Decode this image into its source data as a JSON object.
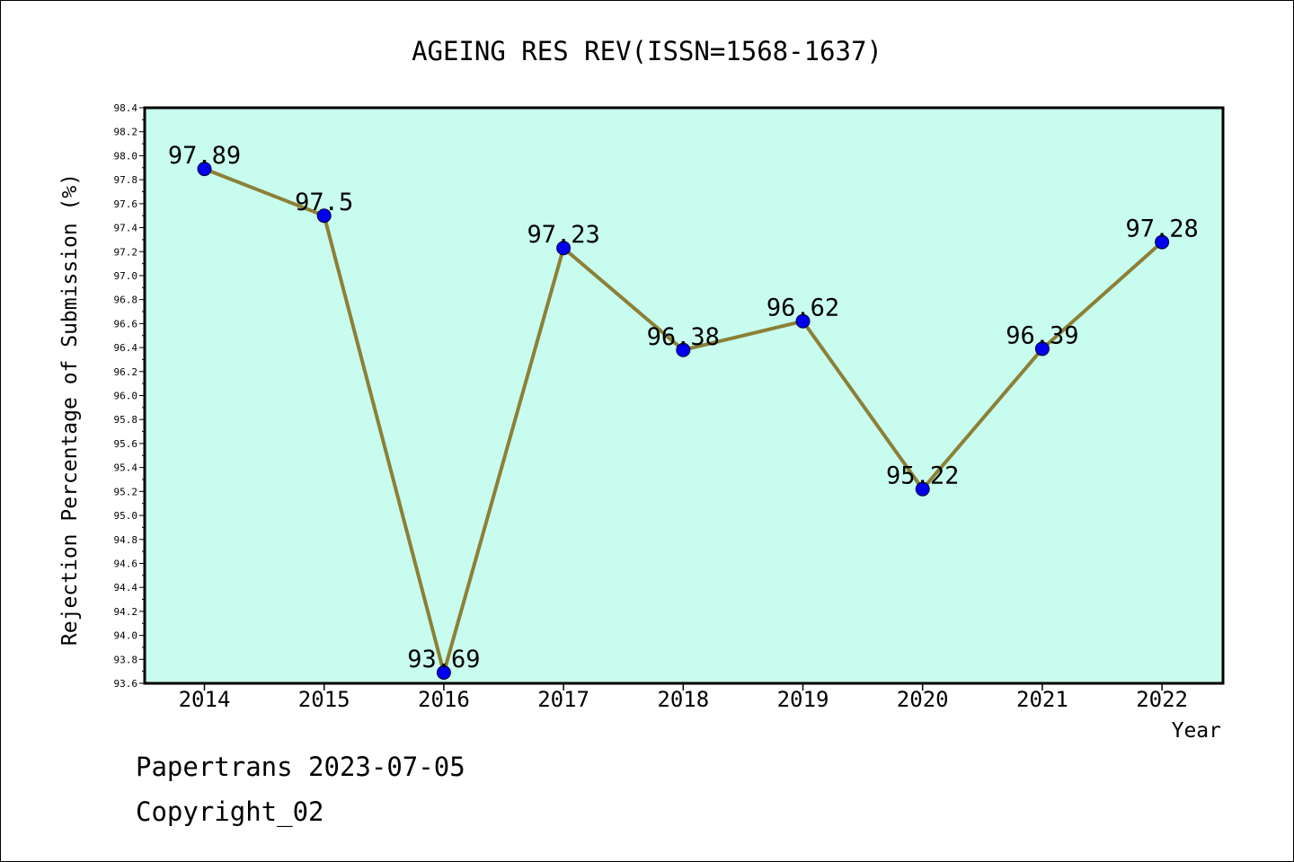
{
  "chart_data": {
    "type": "line",
    "title": "AGEING RES REV(ISSN=1568-1637)",
    "xlabel": "Year",
    "ylabel": "Rejection Percentage of Submission (%)",
    "categories": [
      "2014",
      "2015",
      "2016",
      "2017",
      "2018",
      "2019",
      "2020",
      "2021",
      "2022"
    ],
    "values": [
      97.89,
      97.5,
      93.69,
      97.23,
      96.38,
      96.62,
      95.22,
      96.39,
      97.28
    ],
    "data_labels": [
      "97.89",
      "97.5",
      "93.69",
      "97.23",
      "96.38",
      "96.62",
      "95.22",
      "96.39",
      "97.28"
    ],
    "ylim": [
      93.6,
      98.4
    ],
    "yticks": [
      "93.6",
      "93.8",
      "94.0",
      "94.2",
      "94.4",
      "94.6",
      "94.8",
      "95.0",
      "95.2",
      "95.4",
      "95.6",
      "95.8",
      "96.0",
      "96.2",
      "96.4",
      "96.6",
      "96.8",
      "97.0",
      "97.2",
      "97.4",
      "97.6",
      "97.8",
      "98.0",
      "98.2",
      "98.4"
    ],
    "grid": false,
    "colors": {
      "plot_background": "#c8fcee",
      "line": "#8c8036",
      "marker": "#0000ee",
      "axis": "#000000"
    }
  },
  "footer": {
    "line1": "Papertrans 2023-07-05",
    "line2": "Copyright_02"
  }
}
